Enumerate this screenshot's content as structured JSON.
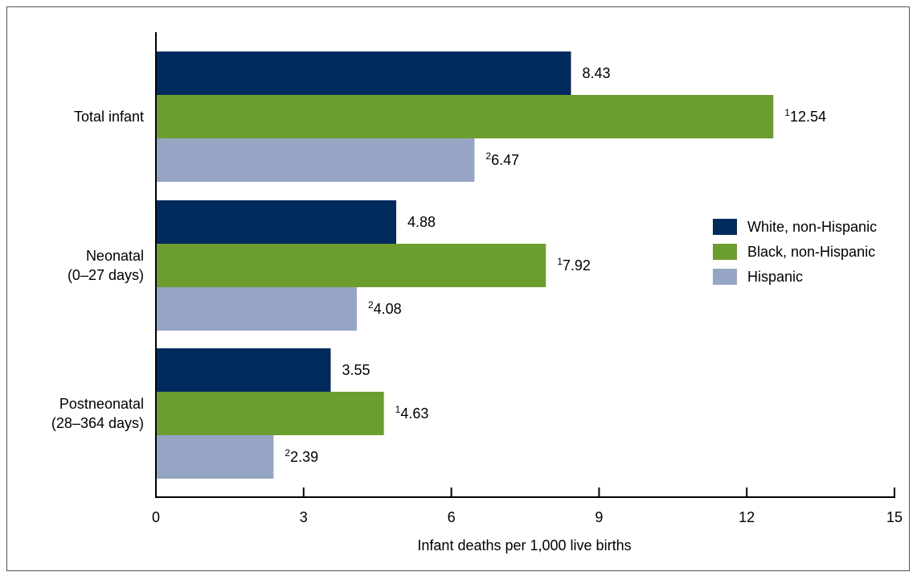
{
  "chart_data": {
    "type": "bar",
    "orientation": "horizontal",
    "categories": [
      [
        "Total infant"
      ],
      [
        "Neonatal",
        "(0–27 days)"
      ],
      [
        "Postneonatal",
        "(28–364 days)"
      ]
    ],
    "series": [
      {
        "name": "White, non-Hispanic",
        "color": "#002b5c",
        "values": [
          8.43,
          4.88,
          3.55
        ],
        "labels": [
          "8.43",
          "4.88",
          "3.55"
        ],
        "superscripts": [
          "",
          "",
          ""
        ]
      },
      {
        "name": "Black, non-Hispanic",
        "color": "#6b9e2f",
        "values": [
          12.54,
          7.92,
          4.63
        ],
        "labels": [
          "12.54",
          "7.92",
          "4.63"
        ],
        "superscripts": [
          "1",
          "1",
          "1"
        ]
      },
      {
        "name": "Hispanic",
        "color": "#97a5c4",
        "values": [
          6.47,
          4.08,
          2.39
        ],
        "labels": [
          "6.47",
          "4.08",
          "2.39"
        ],
        "superscripts": [
          "2",
          "2",
          "2"
        ]
      }
    ],
    "xlabel": "Infant deaths per 1,000 live births",
    "xlim": [
      0,
      15
    ],
    "xticks": [
      0,
      3,
      6,
      9,
      12,
      15
    ],
    "xtick_labels": [
      "0",
      "3",
      "6",
      "9",
      "12",
      "15"
    ],
    "grid": false,
    "legend_position": "right"
  }
}
